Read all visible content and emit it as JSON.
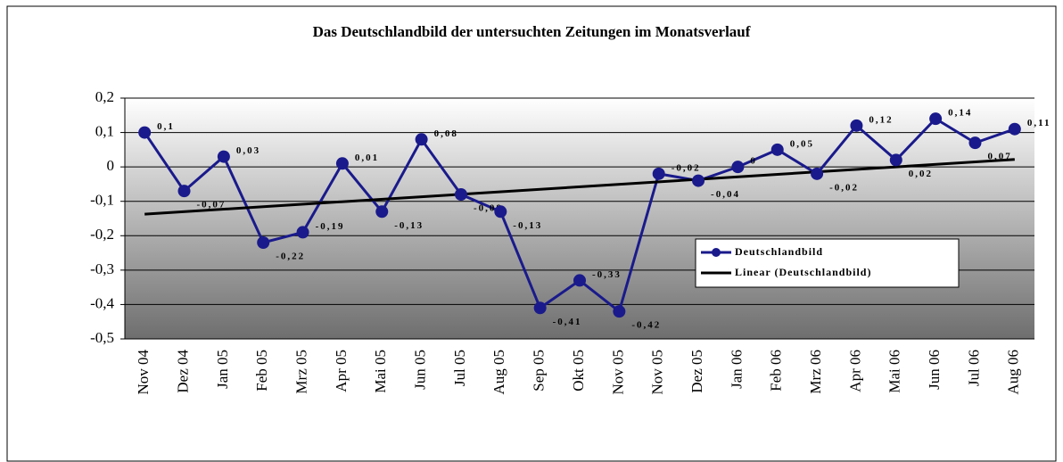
{
  "chart_data": {
    "type": "line",
    "title": "Das Deutschlandbild der untersuchten Zeitungen im Monatsverlauf",
    "categories": [
      "Nov 04",
      "Dez 04",
      "Jan 05",
      "Feb 05",
      "Mrz 05",
      "Apr 05",
      "Mai 05",
      "Jun 05",
      "Jul 05",
      "Aug 05",
      "Sep 05",
      "Okt 05",
      "Nov 05",
      "Nov 05",
      "Dez 05",
      "Jan 06",
      "Feb 06",
      "Mrz 06",
      "Apr 06",
      "Mai 06",
      "Jun 06",
      "Jul 06",
      "Aug 06"
    ],
    "series": [
      {
        "name": "Deutschlandbild",
        "color": "#1a1a8c",
        "values": [
          0.1,
          -0.07,
          0.03,
          -0.22,
          -0.19,
          0.01,
          -0.13,
          0.08,
          -0.08,
          -0.13,
          -0.41,
          -0.33,
          -0.42,
          -0.02,
          -0.04,
          0,
          0.05,
          -0.02,
          0.12,
          0.02,
          0.14,
          0.07,
          0.11
        ],
        "value_labels": [
          "0,1",
          "-0,07",
          "0,03",
          "-0,22",
          "-0,19",
          "0,01",
          "-0,13",
          "0,08",
          "-0,08",
          "-0,13",
          "-0,41",
          "-0,33",
          "-0,42",
          "-0,02",
          "-0,04",
          "0",
          "0,05",
          "-0,02",
          "0,12",
          "0,02",
          "0,14",
          "0,07",
          "0,11"
        ]
      }
    ],
    "trendline": {
      "name": "Linear (Deutschlandbild)",
      "color": "#000000"
    },
    "ylim": [
      -0.5,
      0.2
    ],
    "yticks": [
      {
        "value": -0.5,
        "label": "-0,5"
      },
      {
        "value": -0.4,
        "label": "-0,4"
      },
      {
        "value": -0.3,
        "label": "-0,3"
      },
      {
        "value": -0.2,
        "label": "-0,2"
      },
      {
        "value": -0.1,
        "label": "-0,1"
      },
      0,
      {
        "value": 0.1,
        "label": "0,1"
      },
      {
        "value": 0.2,
        "label": "0,2"
      }
    ],
    "grid": true,
    "legend": "right"
  }
}
